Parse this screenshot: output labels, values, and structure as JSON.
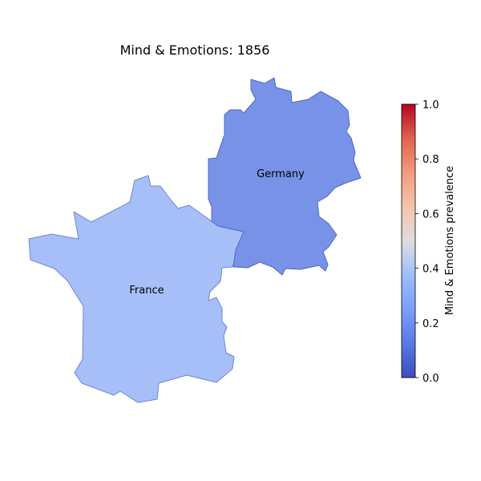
{
  "title": "Mind & Emotions: 1856",
  "regions": [
    {
      "id": "france",
      "label": "France",
      "value": 0.27,
      "fill": "#a6bff8",
      "stroke": "#6f86cc"
    },
    {
      "id": "germany",
      "label": "Germany",
      "value": 0.14,
      "fill": "#7892e8",
      "stroke": "#5068c4"
    }
  ],
  "colorbar": {
    "label": "Mind & Emotions prevalence",
    "min": 0.0,
    "max": 1.0,
    "ticks": [
      "0.0",
      "0.2",
      "0.4",
      "0.6",
      "0.8",
      "1.0"
    ],
    "colormap": "coolwarm",
    "colors": {
      "low": "#3b4cc0",
      "mid": "#dddddd",
      "high": "#b40426"
    }
  }
}
